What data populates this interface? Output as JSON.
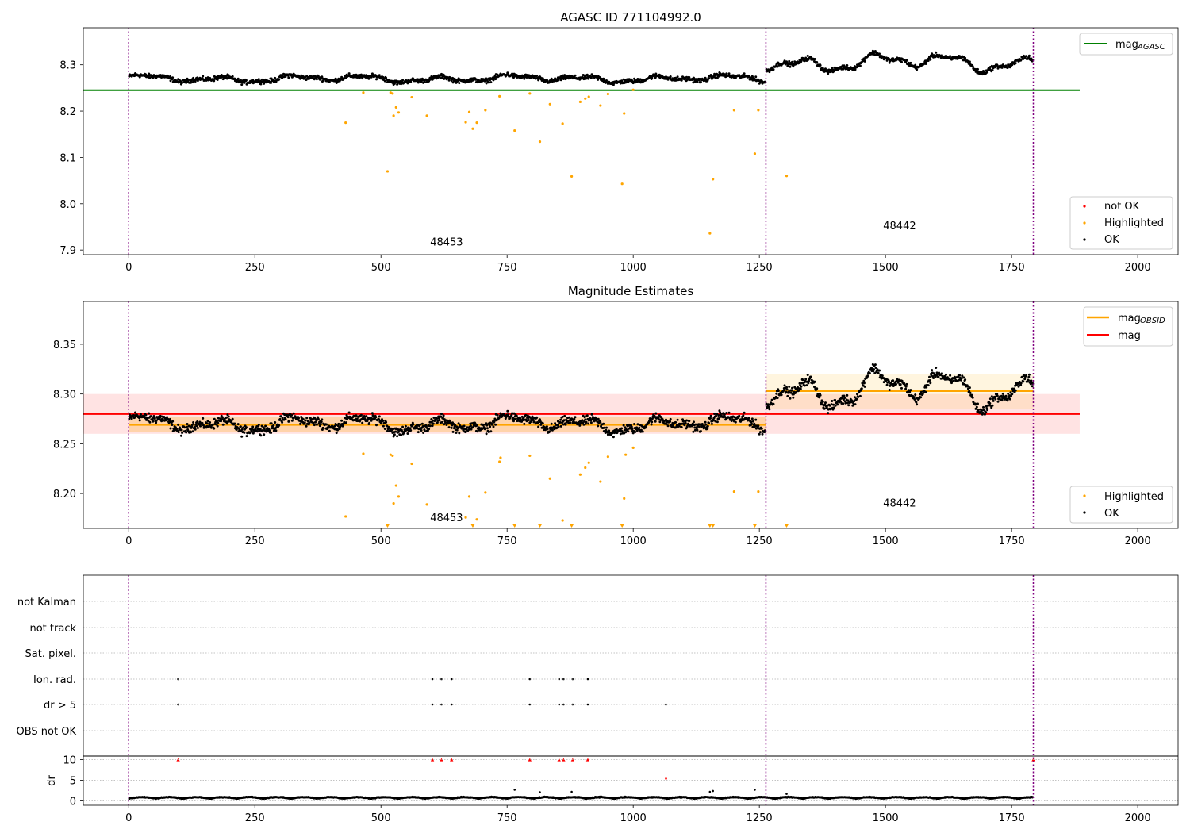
{
  "chart_data": [
    {
      "type": "scatter",
      "title": "AGASC ID 771104992.0",
      "xlim": [
        -90,
        2080
      ],
      "ylim": [
        7.89,
        8.38
      ],
      "xticks": [
        "0",
        "250",
        "500",
        "750",
        "1000",
        "1250",
        "1500",
        "1750",
        "2000"
      ],
      "xtick_values": [
        0,
        250,
        500,
        750,
        1000,
        1250,
        1500,
        1750,
        2000
      ],
      "yticks": [
        "7.9",
        "8.0",
        "8.1",
        "8.2",
        "8.3"
      ],
      "ytick_values": [
        7.9,
        8.0,
        8.1,
        8.2,
        8.3
      ],
      "obsid_boundaries": [
        0,
        1263,
        1793
      ],
      "obsid_labels": [
        {
          "text": "48453",
          "x": 630,
          "y": 7.91
        },
        {
          "text": "48442",
          "x": 1528,
          "y": 7.945
        }
      ],
      "hlines": [
        {
          "name": "mag",
          "sub": "AGASC",
          "y": 8.245,
          "x0": -90,
          "x1": 1885,
          "color": "#008000"
        }
      ],
      "segments": [
        {
          "x0": 0,
          "x1": 1263,
          "center": 8.27,
          "amp": 0.01
        },
        {
          "x0": 1263,
          "x1": 1793,
          "center": 8.305,
          "amp": 0.025
        }
      ],
      "highlighted": [
        [
          430,
          8.175
        ],
        [
          465,
          8.24
        ],
        [
          513,
          8.07
        ],
        [
          519,
          8.24
        ],
        [
          523,
          8.238
        ],
        [
          525,
          8.19
        ],
        [
          530,
          8.208
        ],
        [
          535,
          8.197
        ],
        [
          561,
          8.23
        ],
        [
          591,
          8.19
        ],
        [
          668,
          8.176
        ],
        [
          675,
          8.198
        ],
        [
          682,
          8.162
        ],
        [
          690,
          8.175
        ],
        [
          707,
          8.202
        ],
        [
          735,
          8.232
        ],
        [
          765,
          8.158
        ],
        [
          795,
          8.238
        ],
        [
          815,
          8.134
        ],
        [
          835,
          8.215
        ],
        [
          860,
          8.173
        ],
        [
          878,
          8.059
        ],
        [
          895,
          8.22
        ],
        [
          905,
          8.227
        ],
        [
          912,
          8.231
        ],
        [
          935,
          8.212
        ],
        [
          950,
          8.237
        ],
        [
          978,
          8.043
        ],
        [
          982,
          8.195
        ],
        [
          1000,
          8.246
        ],
        [
          1152,
          7.936
        ],
        [
          1158,
          8.053
        ],
        [
          1200,
          8.202
        ],
        [
          1241,
          8.108
        ],
        [
          1248,
          8.202
        ],
        [
          1304,
          8.06
        ]
      ],
      "legend": [
        {
          "label": "not OK",
          "color": "#ff0000"
        },
        {
          "label": "Highlighted",
          "color": "#ffa500"
        },
        {
          "label": "OK",
          "color": "#000000"
        }
      ]
    },
    {
      "type": "scatter",
      "title": "Magnitude Estimates",
      "xlim": [
        -90,
        2080
      ],
      "ylim": [
        8.165,
        8.393
      ],
      "xticks": [
        "0",
        "250",
        "500",
        "750",
        "1000",
        "1250",
        "1500",
        "1750",
        "2000"
      ],
      "xtick_values": [
        0,
        250,
        500,
        750,
        1000,
        1250,
        1500,
        1750,
        2000
      ],
      "yticks": [
        "8.20",
        "8.25",
        "8.30",
        "8.35"
      ],
      "ytick_values": [
        8.2,
        8.25,
        8.3,
        8.35
      ],
      "obsid_boundaries": [
        0,
        1263,
        1793
      ],
      "obsid_labels": [
        {
          "text": "48453",
          "x": 630,
          "y": 8.172
        },
        {
          "text": "48442",
          "x": 1528,
          "y": 8.187
        }
      ],
      "bands": [
        {
          "x0": -90,
          "x1": 1885,
          "y0": 8.26,
          "y1": 8.3,
          "color": "rgba(255,0,0,0.11)"
        },
        {
          "x0": 0,
          "x1": 1263,
          "y0": 8.262,
          "y1": 8.277,
          "color": "rgba(255,165,0,0.25)"
        },
        {
          "x0": 1263,
          "x1": 1793,
          "y0": 8.285,
          "y1": 8.32,
          "color": "rgba(255,200,80,0.18)"
        }
      ],
      "hlines": [
        {
          "name": "mag",
          "y": 8.28,
          "x0": -90,
          "x1": 1885,
          "color": "#ff0000"
        },
        {
          "name": "mag",
          "sub": "OBSID",
          "y": 8.269,
          "x0": 0,
          "x1": 1263,
          "color": "#ffa500",
          "legend": false
        },
        {
          "name": "mag",
          "sub": "OBSID",
          "y": 8.303,
          "x0": 1263,
          "x1": 1793,
          "color": "#ffa500"
        }
      ],
      "segments": [
        {
          "x0": 0,
          "x1": 1263,
          "center": 8.27,
          "amp": 0.01
        },
        {
          "x0": 1263,
          "x1": 1793,
          "center": 8.305,
          "amp": 0.025
        }
      ],
      "highlighted": [
        [
          430,
          8.177
        ],
        [
          465,
          8.24
        ],
        [
          519,
          8.239
        ],
        [
          523,
          8.238
        ],
        [
          525,
          8.19
        ],
        [
          530,
          8.208
        ],
        [
          535,
          8.197
        ],
        [
          561,
          8.23
        ],
        [
          591,
          8.189
        ],
        [
          668,
          8.176
        ],
        [
          675,
          8.197
        ],
        [
          690,
          8.174
        ],
        [
          707,
          8.201
        ],
        [
          735,
          8.232
        ],
        [
          737,
          8.236
        ],
        [
          795,
          8.238
        ],
        [
          835,
          8.215
        ],
        [
          860,
          8.173
        ],
        [
          895,
          8.219
        ],
        [
          905,
          8.226
        ],
        [
          912,
          8.231
        ],
        [
          935,
          8.212
        ],
        [
          950,
          8.237
        ],
        [
          982,
          8.195
        ],
        [
          985,
          8.239
        ],
        [
          1000,
          8.246
        ],
        [
          1200,
          8.202
        ],
        [
          1248,
          8.202
        ]
      ],
      "below_axis_markers": [
        513,
        682,
        765,
        815,
        878,
        978,
        1152,
        1158,
        1241,
        1304
      ],
      "legend": [
        {
          "label": "Highlighted",
          "color": "#ffa500"
        },
        {
          "label": "OK",
          "color": "#000000"
        }
      ]
    },
    {
      "type": "scatter",
      "title": "",
      "xlim": [
        -90,
        2080
      ],
      "categories": [
        "not Kalman",
        "not track",
        "Sat. pixel.",
        "Ion. rad.",
        "dr > 5",
        "OBS not OK"
      ],
      "flags": {
        "Ion. rad.": [
          98,
          602,
          620,
          640,
          795,
          853,
          862,
          880,
          910
        ],
        "dr > 5": [
          98,
          602,
          620,
          640,
          795,
          853,
          862,
          880,
          910,
          1065
        ]
      },
      "obsid_boundaries": [
        0,
        1263,
        1793
      ],
      "dr": {
        "ylabel": "dr",
        "ylim": [
          -0.5,
          10.5
        ],
        "yticks": [
          "0",
          "5",
          "10"
        ],
        "ytick_values": [
          0,
          5,
          10
        ],
        "capped_at_10": [
          98,
          602,
          620,
          640,
          795,
          853,
          862,
          880,
          910,
          1793
        ],
        "outliers": [
          [
            1065,
            5.4
          ],
          [
            765,
            2.7
          ],
          [
            815,
            2.1
          ],
          [
            878,
            2.2
          ],
          [
            1152,
            2.2
          ],
          [
            1158,
            2.4
          ],
          [
            1241,
            2.7
          ],
          [
            1304,
            1.7
          ]
        ]
      },
      "xticks": [
        "0",
        "250",
        "500",
        "750",
        "1000",
        "1250",
        "1500",
        "1750",
        "2000"
      ],
      "xtick_values": [
        0,
        250,
        500,
        750,
        1000,
        1250,
        1500,
        1750,
        2000
      ]
    }
  ]
}
